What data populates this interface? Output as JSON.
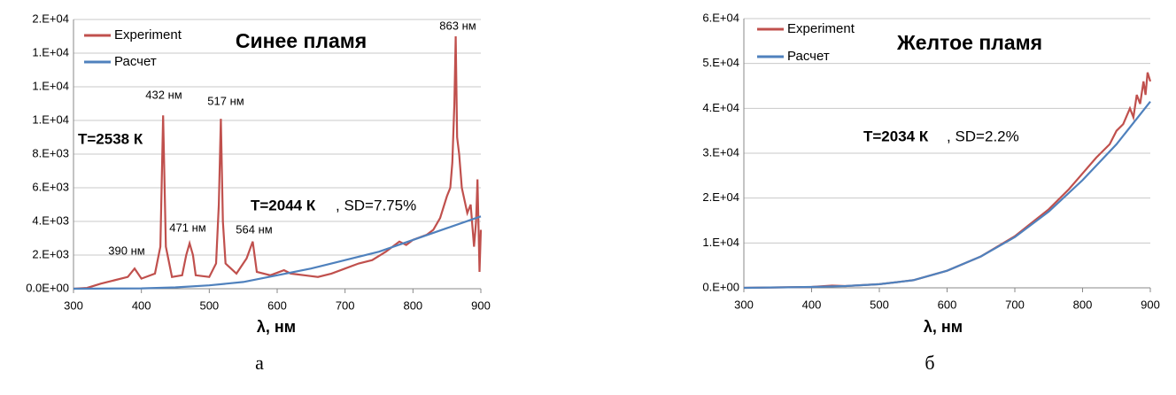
{
  "chart_data": [
    {
      "type": "line",
      "title": "Синее пламя",
      "xlabel": "λ, нм",
      "caption": "а",
      "annotations": [
        "T=2538 К",
        "T=2044 К",
        ", SD=7.75%",
        "390 нм",
        "432 нм",
        "471 нм",
        "517 нм",
        "564 нм",
        "863 нм"
      ],
      "xlim": [
        300,
        900
      ],
      "xticks": [
        300,
        400,
        500,
        600,
        700,
        800,
        900
      ],
      "ylim": [
        0,
        16000
      ],
      "yticks": [
        {
          "value": 0,
          "label": "0.0E+00"
        },
        {
          "value": 2000,
          "label": "2.E+03"
        },
        {
          "value": 4000,
          "label": "4.E+03"
        },
        {
          "value": 6000,
          "label": "6.E+03"
        },
        {
          "value": 8000,
          "label": "8.E+03"
        },
        {
          "value": 10000,
          "label": "1.E+04"
        },
        {
          "value": 12000,
          "label": "1.E+04"
        },
        {
          "value": 14000,
          "label": "1.E+04"
        },
        {
          "value": 16000,
          "label": "2.E+04"
        }
      ],
      "grid": true,
      "series": [
        {
          "name": "Experiment",
          "color": "#c0504d",
          "x": [
            300,
            320,
            340,
            360,
            380,
            390,
            400,
            420,
            428,
            432,
            436,
            445,
            460,
            466,
            471,
            476,
            480,
            500,
            510,
            514,
            517,
            520,
            524,
            540,
            555,
            564,
            570,
            590,
            610,
            620,
            640,
            660,
            680,
            700,
            720,
            740,
            760,
            780,
            790,
            800,
            820,
            830,
            840,
            850,
            855,
            858,
            861,
            863,
            865,
            868,
            872,
            880,
            885,
            890,
            893,
            895,
            898,
            900
          ],
          "values": [
            0,
            50,
            300,
            500,
            700,
            1200,
            600,
            900,
            2500,
            10300,
            2500,
            700,
            800,
            2000,
            2700,
            2000,
            800,
            700,
            1500,
            5000,
            10100,
            4000,
            1500,
            900,
            1800,
            2800,
            1000,
            800,
            1100,
            900,
            800,
            700,
            900,
            1200,
            1500,
            1700,
            2200,
            2800,
            2600,
            2900,
            3200,
            3500,
            4200,
            5500,
            6000,
            7500,
            11000,
            15000,
            9000,
            8000,
            6000,
            4500,
            5000,
            2500,
            4000,
            6500,
            1000,
            3500
          ]
        },
        {
          "name": "Расчет",
          "color": "#4f81bd",
          "x": [
            300,
            400,
            450,
            500,
            550,
            600,
            650,
            700,
            750,
            800,
            850,
            900
          ],
          "values": [
            0,
            20,
            80,
            200,
            400,
            800,
            1200,
            1700,
            2200,
            2900,
            3600,
            4300
          ]
        }
      ]
    },
    {
      "type": "line",
      "title": "Желтое пламя",
      "xlabel": "λ, нм",
      "caption": "б",
      "annotations": [
        "T=2034 К",
        ", SD=2.2%"
      ],
      "xlim": [
        300,
        900
      ],
      "xticks": [
        300,
        400,
        500,
        600,
        700,
        800,
        900
      ],
      "ylim": [
        0,
        60000
      ],
      "yticks": [
        {
          "value": 0,
          "label": "0.E+00"
        },
        {
          "value": 10000,
          "label": "1.E+04"
        },
        {
          "value": 20000,
          "label": "2.E+04"
        },
        {
          "value": 30000,
          "label": "3.E+04"
        },
        {
          "value": 40000,
          "label": "4.E+04"
        },
        {
          "value": 50000,
          "label": "5.E+04"
        },
        {
          "value": 60000,
          "label": "6.E+04"
        }
      ],
      "grid": true,
      "series": [
        {
          "name": "Experiment",
          "color": "#c0504d",
          "x": [
            300,
            400,
            430,
            450,
            500,
            550,
            600,
            650,
            700,
            750,
            780,
            800,
            820,
            840,
            850,
            860,
            870,
            875,
            880,
            885,
            890,
            893,
            896,
            900
          ],
          "values": [
            0,
            200,
            500,
            400,
            800,
            1700,
            3800,
            7000,
            11500,
            17500,
            22000,
            25500,
            29000,
            32000,
            35000,
            36500,
            40000,
            38000,
            43000,
            41000,
            46000,
            43000,
            48000,
            46000
          ]
        },
        {
          "name": "Расчет",
          "color": "#4f81bd",
          "x": [
            300,
            400,
            450,
            500,
            550,
            600,
            650,
            700,
            750,
            800,
            850,
            900
          ],
          "values": [
            0,
            200,
            400,
            800,
            1700,
            3800,
            7000,
            11300,
            17000,
            24000,
            32000,
            41500
          ]
        }
      ]
    }
  ]
}
